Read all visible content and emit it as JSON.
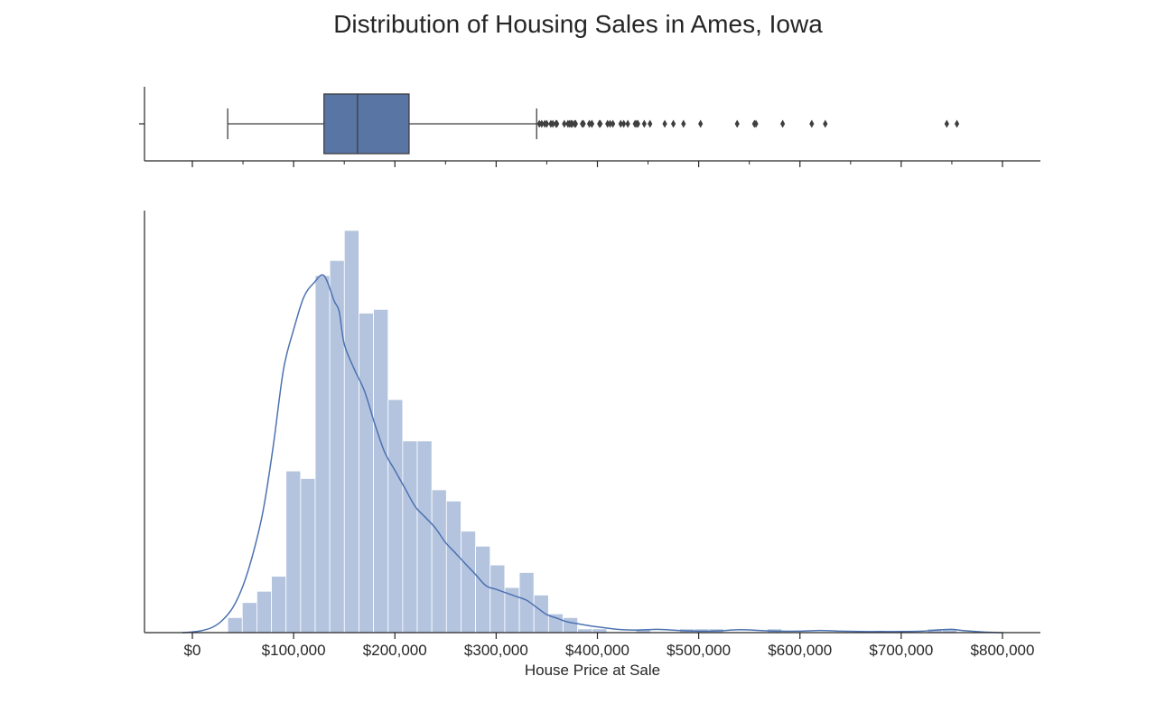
{
  "chart_data": {
    "type": "bar",
    "title": "Distribution of Housing Sales in Ames, Iowa",
    "xlabel": "House Price at Sale",
    "ylabel": "",
    "xlim": [
      -50000,
      840000
    ],
    "x_ticks": [
      0,
      100000,
      200000,
      300000,
      400000,
      500000,
      600000,
      700000,
      800000
    ],
    "x_tick_labels": [
      "$0",
      "$100,000",
      "$200,000",
      "$300,000",
      "$400,000",
      "$500,000",
      "$600,000",
      "$700,000",
      "$800,000"
    ],
    "grid": false,
    "colors": {
      "box": "#5875a4",
      "hist": "#b4c4df",
      "kde": "#4c72b0",
      "axis": "#262626",
      "whisker": "#3f3f3f"
    },
    "boxplot": {
      "whisker_low": 34900,
      "q1": 129975,
      "median": 163000,
      "q3": 214000,
      "whisker_high": 340000,
      "outliers": [
        342643,
        345000,
        348000,
        350000,
        354000,
        356000,
        359100,
        360000,
        367294,
        370878,
        372402,
        374000,
        375000,
        377426,
        378500,
        385000,
        386250,
        392000,
        394432,
        394617,
        402000,
        402861,
        410000,
        412500,
        415298,
        423000,
        426000,
        430000,
        437154,
        438780,
        440000,
        446261,
        451950,
        466500,
        475000,
        485000,
        501837,
        538000,
        555000,
        556581,
        582933,
        611657,
        625000,
        745000,
        755000
      ]
    },
    "histogram": {
      "bin_start": 34900,
      "bin_width": 14400,
      "counts": [
        4,
        8,
        11,
        15,
        43,
        41,
        95,
        99,
        107,
        85,
        86,
        62,
        51,
        51,
        38,
        35,
        27,
        23,
        18,
        12,
        16,
        10,
        5,
        4,
        1,
        1,
        0,
        0,
        1,
        0,
        0,
        1,
        1,
        1,
        0,
        0,
        0,
        1,
        0,
        0,
        0,
        0,
        0,
        0,
        0,
        0,
        0,
        0,
        1,
        1
      ]
    },
    "kde": {
      "x": [
        -10000,
        0,
        10000,
        20000,
        30000,
        40000,
        50000,
        60000,
        70000,
        80000,
        90000,
        100000,
        110000,
        120000,
        130000,
        140000,
        145000,
        150000,
        160000,
        170000,
        180000,
        190000,
        200000,
        210000,
        220000,
        230000,
        240000,
        250000,
        260000,
        270000,
        280000,
        290000,
        300000,
        310000,
        320000,
        330000,
        340000,
        350000,
        360000,
        370000,
        380000,
        390000,
        400000,
        420000,
        440000,
        460000,
        480000,
        500000,
        520000,
        540000,
        560000,
        580000,
        600000,
        620000,
        640000,
        660000,
        680000,
        700000,
        720000,
        740000,
        750000,
        760000,
        780000,
        800000
      ],
      "y": [
        0,
        0.2,
        0.6,
        1.5,
        3.5,
        7,
        13,
        22,
        34,
        52,
        73,
        84,
        93,
        97,
        99,
        92,
        89,
        80,
        73,
        67,
        58,
        50,
        45,
        40,
        35,
        32,
        29,
        25,
        22,
        19,
        16,
        13,
        12,
        11,
        10,
        9,
        7,
        5,
        4,
        3,
        2.5,
        2,
        1.6,
        0.9,
        0.7,
        0.9,
        0.6,
        0.4,
        0.5,
        0.8,
        0.6,
        0.4,
        0.4,
        0.6,
        0.4,
        0.3,
        0.3,
        0.3,
        0.4,
        0.8,
        0.9,
        0.6,
        0.2,
        0
      ]
    }
  }
}
